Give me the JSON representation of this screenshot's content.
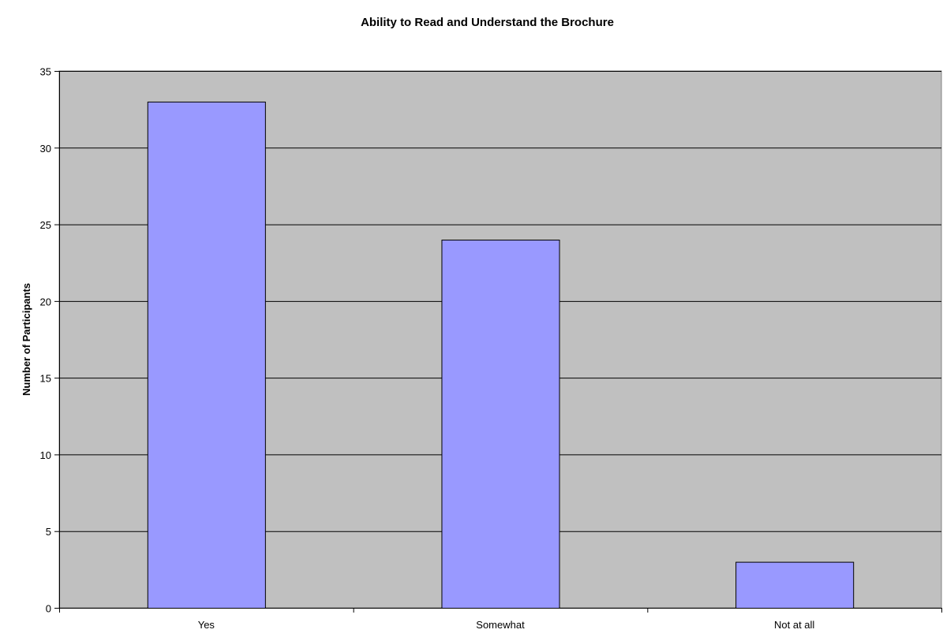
{
  "chart_data": {
    "type": "bar",
    "title": "Ability to Read and Understand the Brochure",
    "xlabel": "",
    "ylabel": "Number of Participants",
    "categories": [
      "Yes",
      "Somewhat",
      "Not at all"
    ],
    "values": [
      33,
      24,
      3
    ],
    "ylim": [
      0,
      35
    ],
    "yticks": [
      0,
      5,
      10,
      15,
      20,
      25,
      30,
      35
    ],
    "grid": true,
    "legend": "none",
    "colors": {
      "bar_fill": "#9999FF",
      "bar_stroke": "#000000",
      "plot_background": "#C0C0C0",
      "gridline": "#000000"
    }
  }
}
